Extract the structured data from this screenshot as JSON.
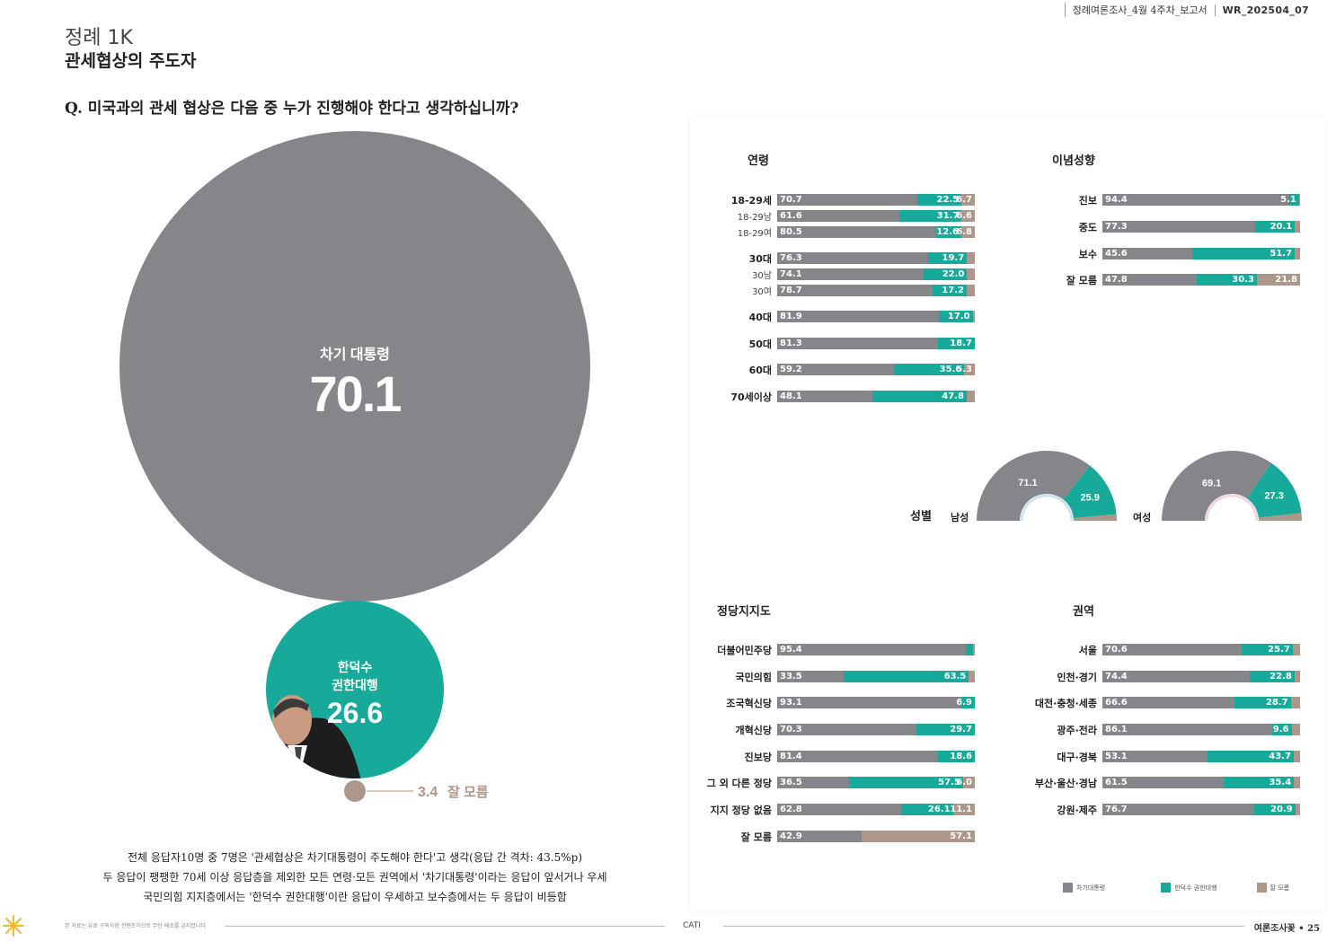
{
  "header": {
    "doc_name": "정례여론조사_4월 4주차_보고서",
    "doc_code": "WR_202504_07"
  },
  "page": {
    "subtitle": "정례 1K",
    "title": "관세협상의 주도자",
    "question": "Q. 미국과의 관세 협상은 다음 중 누가 진행해야 한다고 생각하십니까?"
  },
  "colors": {
    "next_president": "#86868a",
    "han": "#17a99a",
    "dont_know": "#ad968a"
  },
  "chart_data": [
    {
      "type": "bubble",
      "title": "",
      "items": [
        {
          "label": "차기 대통령",
          "value": 70.1,
          "display": "70.1",
          "color": "#86868a"
        },
        {
          "label": "한덕수 권한대행",
          "value": 26.6,
          "display": "26.6",
          "color": "#17a99a"
        },
        {
          "label": "잘 모름",
          "value": 3.4,
          "display": "3.4",
          "color": "#ad968a"
        }
      ]
    },
    {
      "type": "bar",
      "stacked": true,
      "title": "연령",
      "series_names": [
        "차기대통령",
        "한덕수 권한대행",
        "잘 모름"
      ],
      "rows": [
        {
          "label": "18-29세",
          "small": false,
          "values": [
            70.7,
            22.5,
            6.7
          ],
          "labels": [
            "70.7",
            "22.5",
            "6.7"
          ]
        },
        {
          "label": "18-29남",
          "small": true,
          "values": [
            61.6,
            31.7,
            6.6
          ],
          "labels": [
            "61.6",
            "31.7",
            "6.6"
          ]
        },
        {
          "label": "18-29여",
          "small": true,
          "values": [
            80.5,
            12.6,
            6.8
          ],
          "labels": [
            "80.5",
            "12.6",
            "6.8"
          ]
        },
        {
          "label": "30대",
          "small": false,
          "values": [
            76.3,
            19.7,
            4.0
          ],
          "labels": [
            "76.3",
            "19.7",
            ""
          ]
        },
        {
          "label": "30남",
          "small": true,
          "values": [
            74.1,
            22.0,
            3.9
          ],
          "labels": [
            "74.1",
            "22.0",
            ""
          ]
        },
        {
          "label": "30여",
          "small": true,
          "values": [
            78.7,
            17.2,
            4.1
          ],
          "labels": [
            "78.7",
            "17.2",
            ""
          ]
        },
        {
          "label": "40대",
          "small": false,
          "values": [
            81.9,
            17.0,
            1.1
          ],
          "labels": [
            "81.9",
            "17.0",
            ""
          ]
        },
        {
          "label": "50대",
          "small": false,
          "values": [
            81.3,
            18.7,
            0.0
          ],
          "labels": [
            "81.3",
            "18.7",
            ""
          ]
        },
        {
          "label": "60대",
          "small": false,
          "values": [
            59.2,
            35.6,
            5.3
          ],
          "labels": [
            "59.2",
            "35.6",
            "5.3"
          ]
        },
        {
          "label": "70세이상",
          "small": false,
          "values": [
            48.1,
            47.8,
            4.1
          ],
          "labels": [
            "48.1",
            "47.8",
            ""
          ]
        }
      ]
    },
    {
      "type": "bar",
      "stacked": true,
      "title": "이념성향",
      "rows": [
        {
          "label": "진보",
          "values": [
            94.4,
            5.1,
            0.5
          ],
          "labels": [
            "94.4",
            "5.1",
            ""
          ]
        },
        {
          "label": "중도",
          "values": [
            77.3,
            20.1,
            2.6
          ],
          "labels": [
            "77.3",
            "20.1",
            ""
          ]
        },
        {
          "label": "보수",
          "values": [
            45.6,
            51.7,
            2.7
          ],
          "labels": [
            "45.6",
            "51.7",
            ""
          ]
        },
        {
          "label": "잘 모름",
          "values": [
            47.8,
            30.3,
            21.8
          ],
          "labels": [
            "47.8",
            "30.3",
            "21.8"
          ]
        }
      ]
    },
    {
      "type": "pie",
      "title": "성별",
      "charts": [
        {
          "label": "남성",
          "values": [
            71.1,
            25.9,
            3.0
          ],
          "labels": [
            "71.1",
            "25.9",
            ""
          ]
        },
        {
          "label": "여성",
          "values": [
            69.1,
            27.3,
            3.6
          ],
          "labels": [
            "69.1",
            "27.3",
            ""
          ]
        }
      ]
    },
    {
      "type": "bar",
      "stacked": true,
      "title": "정당지지도",
      "rows": [
        {
          "label": "더불어민주당",
          "values": [
            95.4,
            3.5,
            1.1
          ],
          "labels": [
            "95.4",
            "",
            ""
          ]
        },
        {
          "label": "국민의힘",
          "values": [
            33.5,
            63.5,
            3.0
          ],
          "labels": [
            "33.5",
            "63.5",
            ""
          ]
        },
        {
          "label": "조국혁신당",
          "values": [
            93.1,
            6.9,
            0.0
          ],
          "labels": [
            "93.1",
            "6.9",
            ""
          ]
        },
        {
          "label": "개혁신당",
          "values": [
            70.3,
            29.7,
            0.0
          ],
          "labels": [
            "70.3",
            "29.7",
            ""
          ]
        },
        {
          "label": "진보당",
          "values": [
            81.4,
            18.6,
            0.0
          ],
          "labels": [
            "81.4",
            "18.6",
            ""
          ]
        },
        {
          "label": "그 외 다른 정당",
          "values": [
            36.5,
            57.5,
            6.0
          ],
          "labels": [
            "36.5",
            "57.5",
            "6.0"
          ]
        },
        {
          "label": "지지 정당 없음",
          "values": [
            62.8,
            26.1,
            11.1
          ],
          "labels": [
            "62.8",
            "26.1",
            "11.1"
          ]
        },
        {
          "label": "잘 모름",
          "values": [
            42.9,
            0.0,
            57.1
          ],
          "labels": [
            "42.9",
            "",
            "57.1"
          ]
        }
      ]
    },
    {
      "type": "bar",
      "stacked": true,
      "title": "권역",
      "rows": [
        {
          "label": "서울",
          "values": [
            70.6,
            25.7,
            3.7
          ],
          "labels": [
            "70.6",
            "25.7",
            ""
          ]
        },
        {
          "label": "인천·경기",
          "values": [
            74.4,
            22.8,
            2.8
          ],
          "labels": [
            "74.4",
            "22.8",
            ""
          ]
        },
        {
          "label": "대전·충청·세종",
          "values": [
            66.6,
            28.7,
            4.7
          ],
          "labels": [
            "66.6",
            "28.7",
            ""
          ]
        },
        {
          "label": "광주·전라",
          "values": [
            86.1,
            9.6,
            4.3
          ],
          "labels": [
            "86.1",
            "9.6",
            ""
          ]
        },
        {
          "label": "대구·경북",
          "values": [
            53.1,
            43.7,
            3.2
          ],
          "labels": [
            "53.1",
            "43.7",
            ""
          ]
        },
        {
          "label": "부산·울산·경남",
          "values": [
            61.5,
            35.4,
            3.1
          ],
          "labels": [
            "61.5",
            "35.4",
            ""
          ]
        },
        {
          "label": "강원·제주",
          "values": [
            76.7,
            20.9,
            2.4
          ],
          "labels": [
            "76.7",
            "20.9",
            ""
          ]
        }
      ]
    }
  ],
  "legend": [
    {
      "label": "차기대통령",
      "color": "#86868a"
    },
    {
      "label": "한덕수 권한대행",
      "color": "#17a99a"
    },
    {
      "label": "잘 모름",
      "color": "#ad968a"
    }
  ],
  "summary": [
    "전체 응답자10명 중 7명은 '관세협상은 차기대통령이 주도해야 한다'고 생각(응답 간 격차: 43.5%p)",
    "두 응답이 팽팽한 70세 이상 응답층을 제외한 모든 연령·모든 권역에서 '차기대통령'이라는 응답이 앞서거나 우세",
    "국민의힘 지지층에서는 '한덕수 권한대행'이란 응답이 우세하고 보수층에서는 두 응답이 비등함"
  ],
  "footer": {
    "left": "본 자료는 유료 구독자용 컨텐츠이므로 무단 배포를 금지합니다",
    "mid": "CATI",
    "right": "여론조사꽃 • 25"
  }
}
